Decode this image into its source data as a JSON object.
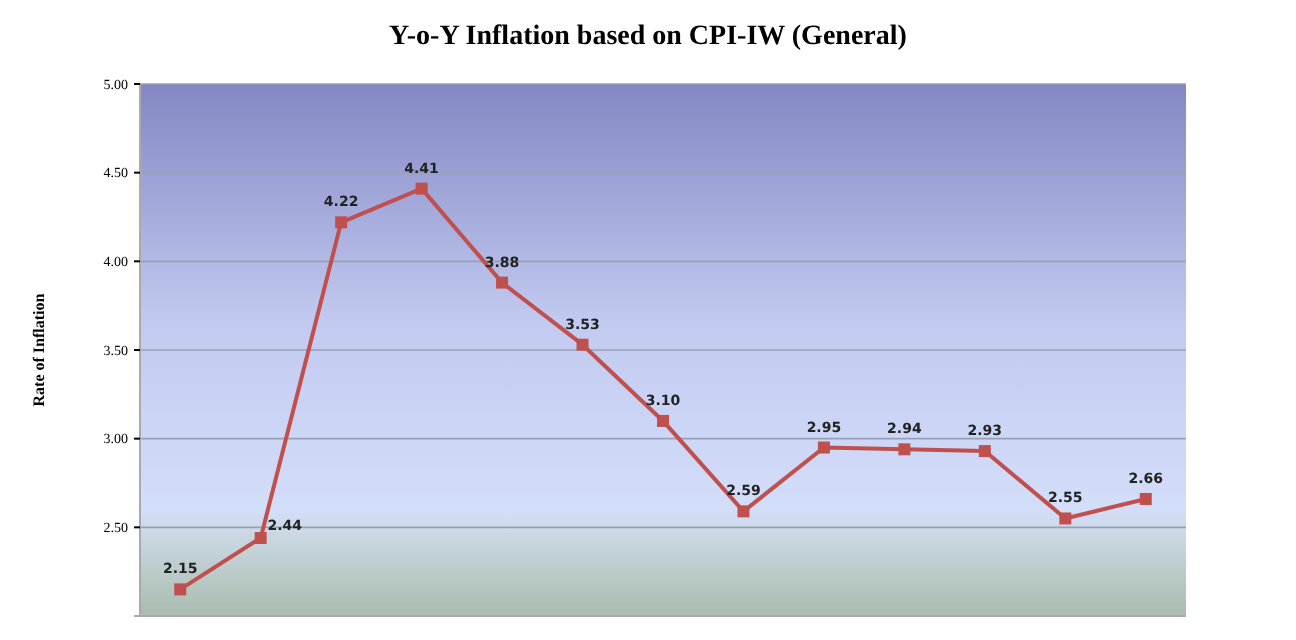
{
  "chart_data": {
    "type": "line",
    "title": "Y-o-Y Inflation based on CPI-IW (General)",
    "ylabel": "Rate of Inflation",
    "categories": [
      null,
      null,
      null,
      null,
      null,
      null,
      null,
      null,
      null,
      null,
      null,
      null,
      null
    ],
    "series": [
      {
        "color": "#c0504d",
        "values": [
          2.15,
          2.44,
          4.22,
          4.41,
          3.88,
          3.53,
          3.1,
          2.59,
          2.95,
          2.94,
          2.93,
          2.55,
          2.66
        ],
        "value_labels": [
          "2.15",
          "2.44",
          "4.22",
          "4.41",
          "3.88",
          "3.53",
          "3.10",
          "2.59",
          "2.95",
          "2.94",
          "2.93",
          "2.55",
          "2.66"
        ]
      }
    ],
    "ylim": [
      2.0,
      5.0
    ],
    "yticks": [
      {
        "value": 2.5,
        "label": "2.50"
      },
      {
        "value": 3.0,
        "label": "3.00"
      },
      {
        "value": 3.5,
        "label": "3.50"
      },
      {
        "value": 4.0,
        "label": "4.00"
      },
      {
        "value": 4.5,
        "label": "4.50"
      },
      {
        "value": 5.0,
        "label": "5.00"
      }
    ],
    "grid": "y",
    "marker": "square",
    "line_style": "solid"
  }
}
